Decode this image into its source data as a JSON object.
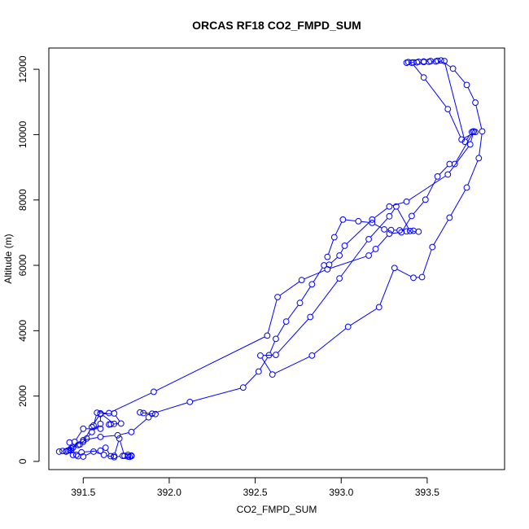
{
  "chart_data": {
    "type": "scatter",
    "title": "ORCAS RF18 CO2_FMPD_SUM",
    "xlabel": "CO2_FMPD_SUM",
    "ylabel": "Altitude (m)",
    "xlim": [
      391.3,
      393.95
    ],
    "ylim": [
      -250,
      12650
    ],
    "xticks": [
      391.5,
      392.0,
      392.5,
      393.0,
      393.5
    ],
    "xtick_labels": [
      "391.5",
      "392.0",
      "392.5",
      "393.0",
      "393.5"
    ],
    "yticks": [
      0,
      2000,
      4000,
      6000,
      8000,
      10000,
      12000
    ],
    "ytick_labels": [
      "0",
      "2000",
      "4000",
      "6000",
      "8000",
      "10000",
      "12000"
    ],
    "grid": false,
    "marker": "open-circle",
    "line_color": "#0000ff",
    "series": [
      {
        "x": [
          391.36,
          391.38,
          391.41,
          391.4,
          391.42,
          391.44,
          391.48,
          391.52,
          391.55,
          391.6,
          391.6,
          391.68,
          391.72,
          391.66,
          391.65,
          391.68,
          391.6,
          391.55,
          391.5,
          391.47,
          391.43,
          391.5,
          391.6,
          391.7,
          391.78,
          391.88,
          391.92,
          391.85,
          391.83,
          391.9,
          392.12,
          392.43,
          392.52,
          392.58,
          392.62,
          392.68,
          392.76,
          392.83,
          392.9,
          392.93,
          392.99,
          393.02,
          393.18,
          393.28,
          393.38,
          393.62,
          393.75,
          393.77,
          393.78,
          393.7,
          393.62,
          393.48,
          393.41,
          393.39,
          393.42
        ],
        "y": [
          300,
          320,
          330,
          310,
          350,
          420,
          520,
          700,
          900,
          1150,
          1450,
          1470,
          1160,
          1140,
          1130,
          1150,
          1470,
          1050,
          600,
          500,
          400,
          650,
          750,
          800,
          900,
          1350,
          1450,
          1480,
          1500,
          1460,
          1820,
          2260,
          2750,
          3250,
          3750,
          4280,
          4850,
          5420,
          6000,
          6020,
          6300,
          6600,
          7400,
          7800,
          7950,
          8780,
          9700,
          10100,
          10080,
          9850,
          10780,
          11750,
          12200,
          12220,
          12210
        ]
      },
      {
        "x": [
          393.45,
          393.48,
          393.52,
          393.56,
          393.58,
          393.65,
          393.73,
          393.78,
          393.82,
          393.8,
          393.73,
          393.63,
          393.53,
          393.47,
          393.42,
          393.31,
          393.22,
          393.04,
          392.83,
          392.6,
          392.53,
          392.62,
          392.82,
          392.99,
          393.16,
          393.28,
          393.32,
          393.4,
          393.45,
          393.42,
          393.38,
          393.34,
          393.29,
          393.25,
          393.18,
          393.1,
          393.01,
          392.96,
          392.92
        ],
        "y": [
          12230,
          12240,
          12250,
          12260,
          12270,
          12020,
          11520,
          10980,
          10100,
          9280,
          8380,
          7460,
          6560,
          5640,
          5620,
          5920,
          4720,
          4120,
          3240,
          2660,
          3240,
          3260,
          4420,
          5600,
          6800,
          7500,
          7800,
          7050,
          7030,
          7060,
          7040,
          7070,
          7080,
          7100,
          7300,
          7350,
          7400,
          6860,
          6260
        ]
      },
      {
        "x": [
          393.38,
          393.44,
          393.48,
          393.51,
          393.55,
          393.6,
          393.72,
          393.76,
          393.77,
          393.66,
          393.63,
          393.56,
          393.49,
          393.41,
          393.35,
          393.28,
          393.2,
          393.16,
          392.92,
          392.77,
          392.63,
          392.57,
          391.91,
          391.65,
          391.58,
          391.56,
          391.6,
          391.5,
          391.45,
          391.42,
          391.44,
          391.47,
          391.5,
          391.56,
          391.62,
          391.68,
          391.73,
          391.76,
          391.78,
          391.76
        ],
        "y": [
          12200,
          12210,
          12220,
          12230,
          12240,
          12250,
          9780,
          10080,
          10090,
          9100,
          9100,
          8720,
          8010,
          7510,
          7010,
          6970,
          6500,
          6300,
          5880,
          5550,
          5030,
          3850,
          2130,
          1480,
          1490,
          1100,
          1000,
          1000,
          600,
          580,
          200,
          160,
          150,
          300,
          200,
          130,
          170,
          200,
          180,
          150
        ]
      },
      {
        "x": [
          391.4,
          391.43,
          391.46,
          391.49,
          391.6,
          391.63,
          391.66,
          391.68,
          391.71,
          391.74,
          391.77,
          391.78
        ],
        "y": [
          300,
          340,
          200,
          280,
          330,
          420,
          160,
          170,
          700,
          170,
          140,
          160
        ]
      }
    ]
  }
}
